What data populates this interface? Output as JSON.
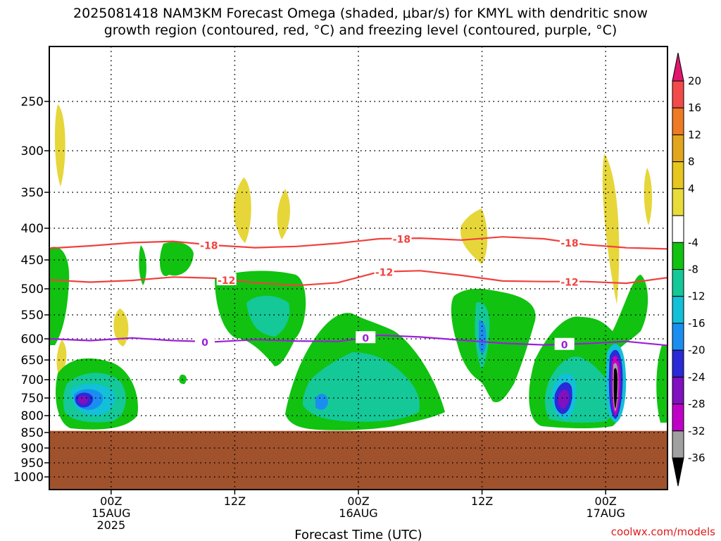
{
  "title_line1": "2025081418 NAM3KM Forecast Omega (shaded, μbar/s) for KMYL with dendritic snow",
  "title_line2": "growth region (contoured, red, °C) and freezing level (contoured, purple, °C)",
  "chart_data": {
    "type": "heatmap",
    "xlabel": "Forecast Time (UTC)",
    "ylabel": "",
    "pressure_levels": [
      250,
      300,
      350,
      400,
      450,
      500,
      550,
      600,
      650,
      700,
      750,
      800,
      850,
      900,
      950,
      1000
    ],
    "x_ticks": [
      {
        "hour": 6,
        "label1": "00Z",
        "label2": "15AUG",
        "label3": "2025"
      },
      {
        "hour": 18,
        "label1": "12Z",
        "label2": "",
        "label3": ""
      },
      {
        "hour": 30,
        "label1": "00Z",
        "label2": "16AUG",
        "label3": ""
      },
      {
        "hour": 42,
        "label1": "12Z",
        "label2": "",
        "label3": ""
      },
      {
        "hour": 54,
        "label1": "00Z",
        "label2": "17AUG",
        "label3": ""
      }
    ],
    "x_range_hours": [
      0,
      60
    ],
    "colorbar": {
      "labels": [
        "20",
        "16",
        "12",
        "8",
        "4",
        "-4",
        "-8",
        "-12",
        "-16",
        "-20",
        "-24",
        "-28",
        "-32",
        "-36"
      ],
      "colors": [
        "#e0176e",
        "#f24a4a",
        "#ee7a24",
        "#e2a51c",
        "#e6c61f",
        "#e8dc3a",
        "#ffffff",
        "#11c211",
        "#14c898",
        "#12c0d8",
        "#1a8ef0",
        "#2a2ad8",
        "#8010c0",
        "#c000c8",
        "#a0a0a0",
        "#000000"
      ]
    },
    "contours": [
      {
        "label": "-18",
        "color": "#f0413e",
        "points": [
          [
            0,
            431
          ],
          [
            4,
            427
          ],
          [
            8,
            422
          ],
          [
            12,
            420
          ],
          [
            16,
            426
          ],
          [
            20,
            430
          ],
          [
            24,
            428
          ],
          [
            28,
            423
          ],
          [
            32,
            416
          ],
          [
            36,
            415
          ],
          [
            40,
            418
          ],
          [
            44,
            413
          ],
          [
            48,
            416
          ],
          [
            52,
            425
          ],
          [
            56,
            430
          ],
          [
            60,
            432
          ]
        ],
        "label_hours": [
          15.5,
          34.2,
          50.5
        ]
      },
      {
        "label": "-12",
        "color": "#f0413e",
        "points": [
          [
            0,
            484
          ],
          [
            4,
            488
          ],
          [
            8,
            485
          ],
          [
            12,
            479
          ],
          [
            16,
            481
          ],
          [
            20,
            489
          ],
          [
            24,
            494
          ],
          [
            28,
            489
          ],
          [
            32,
            470
          ],
          [
            36,
            468
          ],
          [
            40,
            476
          ],
          [
            44,
            486
          ],
          [
            48,
            487
          ],
          [
            52,
            487
          ],
          [
            56,
            490
          ],
          [
            60,
            480
          ]
        ],
        "label_hours": [
          17.2,
          32.5,
          50.5
        ]
      },
      {
        "label": "0",
        "color": "#9b1fd8",
        "points": [
          [
            0,
            600
          ],
          [
            4,
            604
          ],
          [
            8,
            598
          ],
          [
            12,
            604
          ],
          [
            16,
            607
          ],
          [
            20,
            602
          ],
          [
            24,
            605
          ],
          [
            28,
            606
          ],
          [
            30,
            600
          ],
          [
            32,
            592
          ],
          [
            36,
            596
          ],
          [
            40,
            603
          ],
          [
            44,
            610
          ],
          [
            48,
            614
          ],
          [
            52,
            611
          ],
          [
            56,
            606
          ],
          [
            60,
            615
          ]
        ],
        "label_hours": [
          15.1,
          30.7,
          50.0
        ]
      }
    ],
    "ground_level_hpa": 845,
    "ground_color": "#a0522d"
  },
  "watermark": "coolwx.com/models"
}
